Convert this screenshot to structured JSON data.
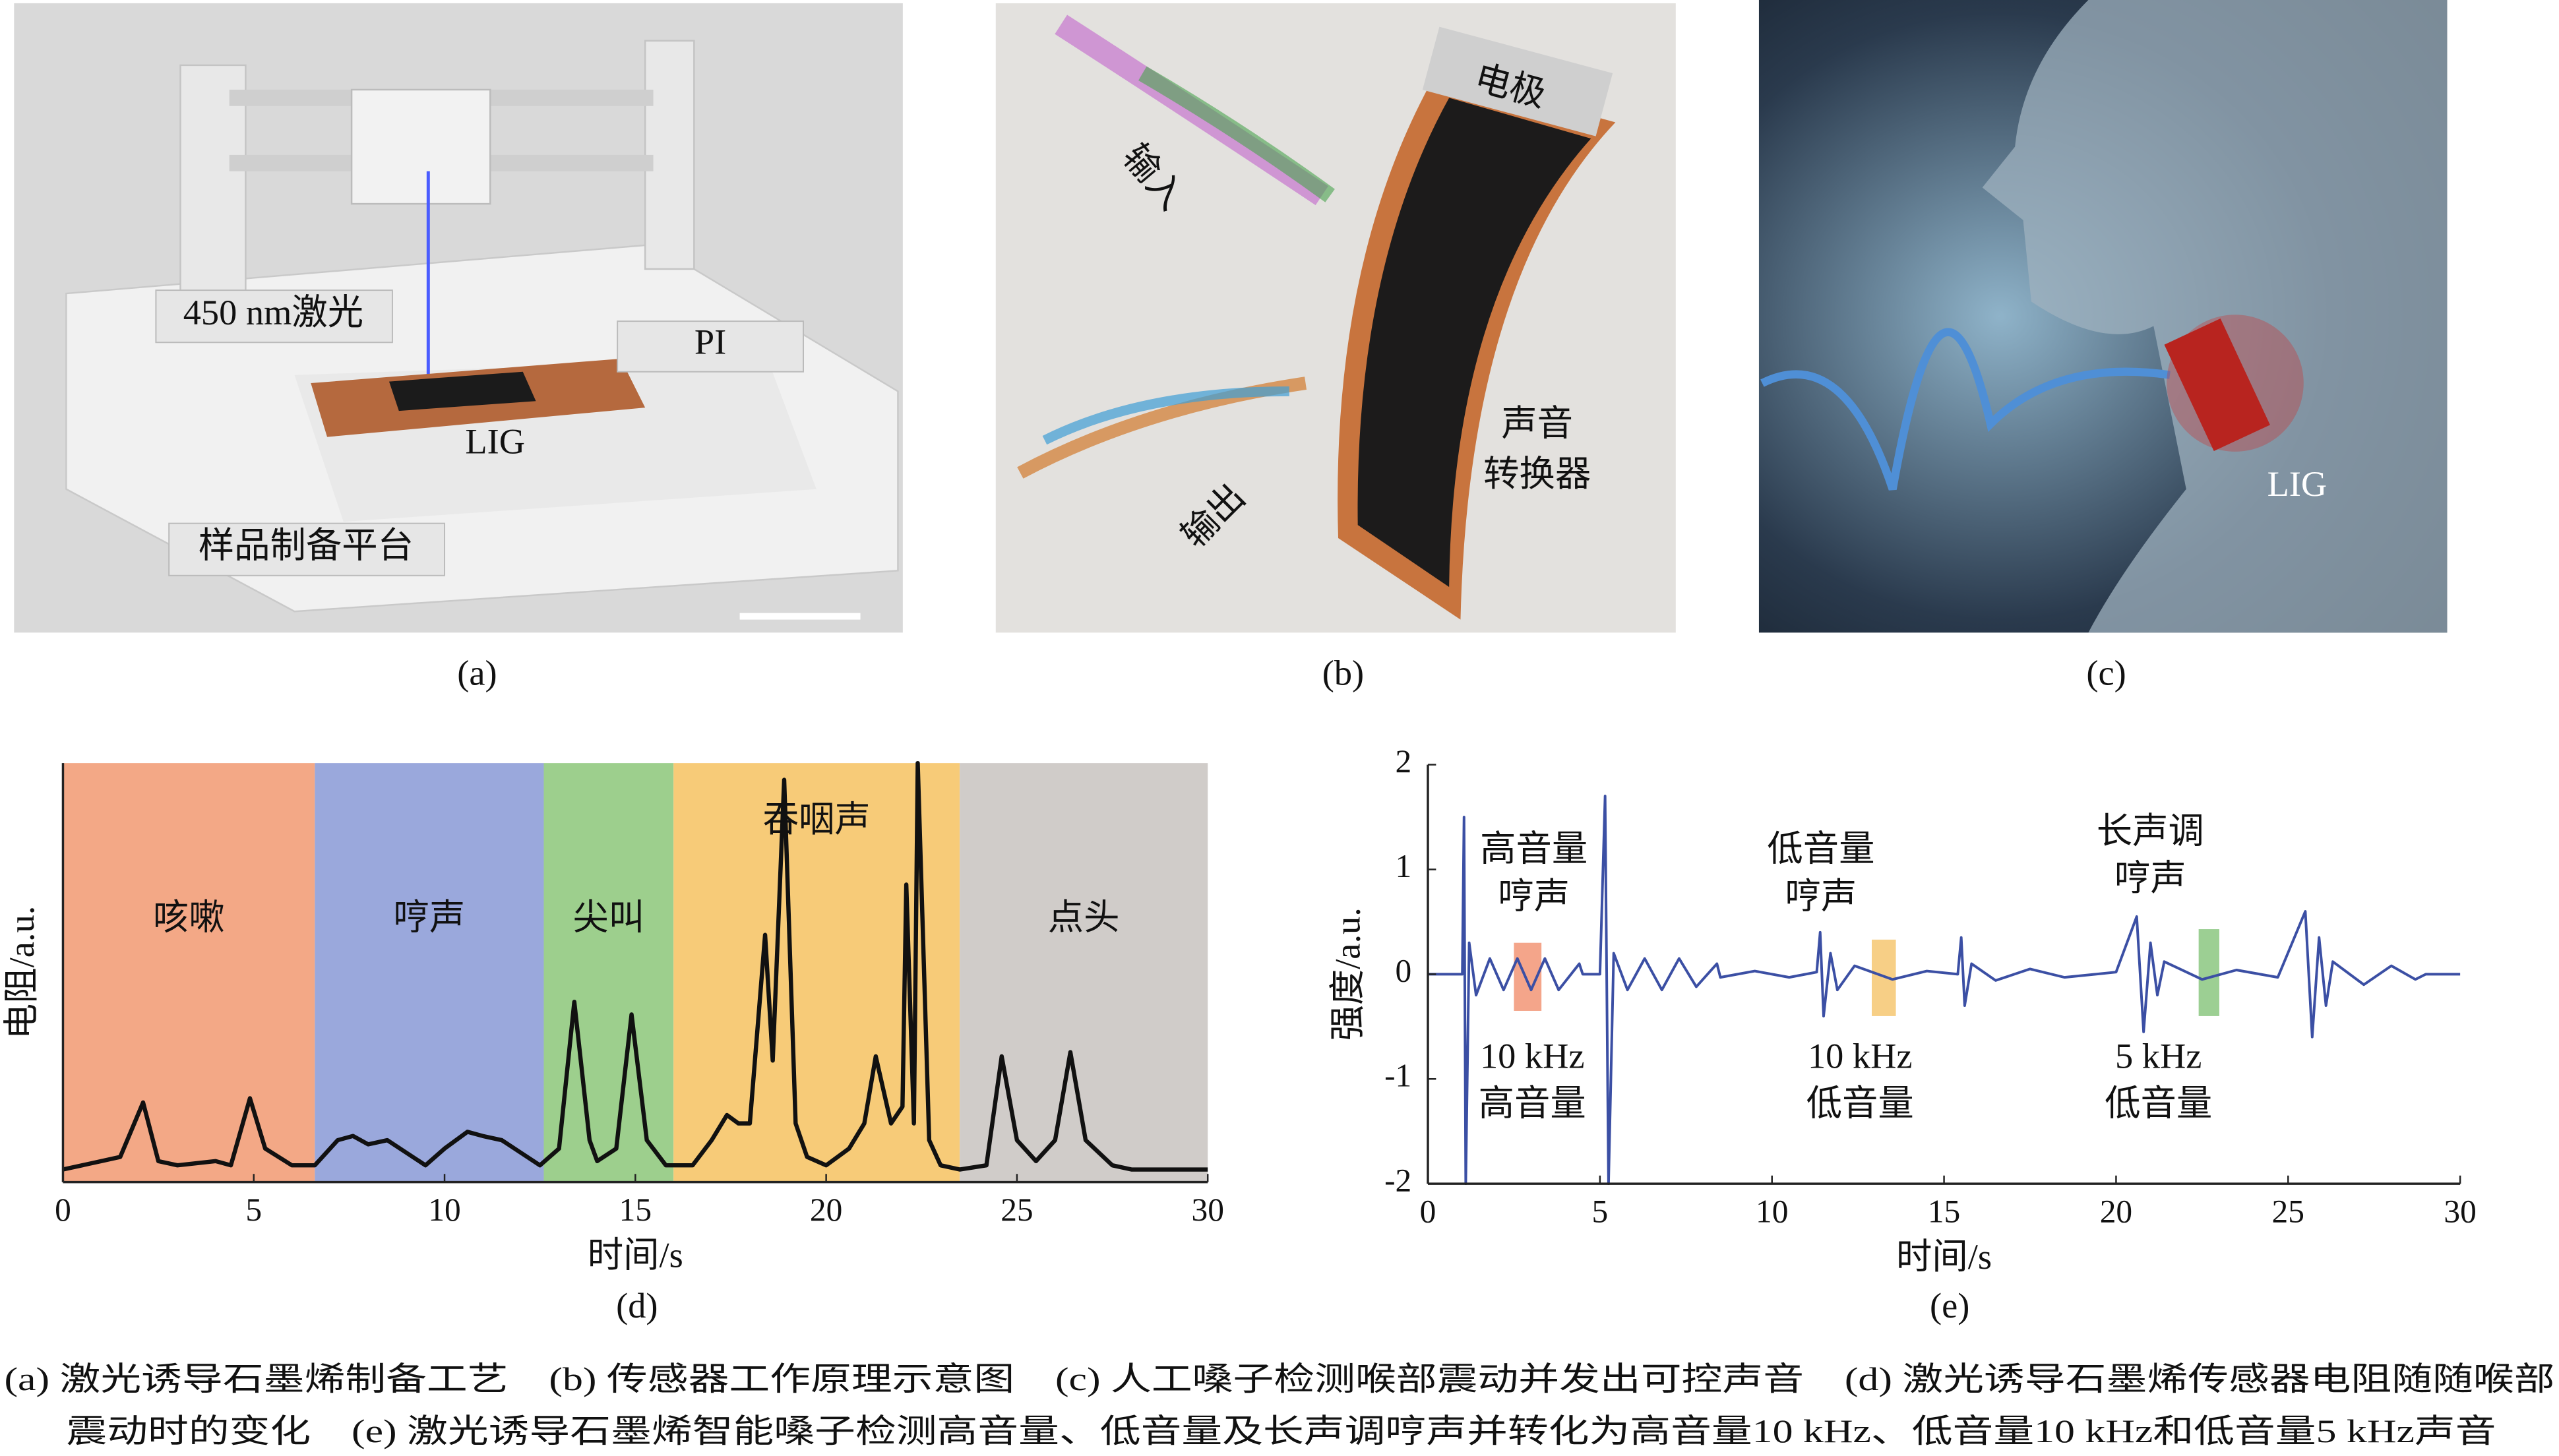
{
  "panels": [
    {
      "label": "(a)",
      "texts": [
        "450 nm激光",
        "PI",
        "LIG",
        "样品制备平台"
      ]
    },
    {
      "label": "(b)",
      "texts": [
        "电极",
        "输入",
        "输出",
        "声音",
        "转换器"
      ]
    },
    {
      "label": "(c)",
      "texts": [
        "LIG"
      ]
    }
  ],
  "chart_data": [
    {
      "type": "line",
      "panel_label": "(d)",
      "xlabel": "时间/s",
      "ylabel": "电阻/a.u.",
      "color": "#111111",
      "xlim": [
        0,
        30
      ],
      "xticks": [
        0,
        5,
        10,
        15,
        20,
        25,
        30
      ],
      "ylim": [
        0,
        1
      ],
      "regions": [
        {
          "label": "咳嗽",
          "start": 0,
          "end": 6.6,
          "color": "#f3a886"
        },
        {
          "label": "哼声",
          "start": 6.6,
          "end": 12.6,
          "color": "#9aa8dc"
        },
        {
          "label": "尖叫",
          "start": 12.6,
          "end": 16,
          "color": "#9dcf8d"
        },
        {
          "label": "吞咽声",
          "start": 16,
          "end": 23.5,
          "color": "#f7cb78"
        },
        {
          "label": "点头",
          "start": 23.5,
          "end": 30,
          "color": "#d0ccc9"
        }
      ],
      "x": [
        0,
        1,
        1.5,
        2.1,
        2.5,
        3,
        4,
        4.4,
        4.9,
        5.3,
        6,
        6.6,
        7.2,
        7.6,
        8,
        8.5,
        9,
        9.5,
        10,
        10.6,
        11,
        11.5,
        12,
        12.5,
        13,
        13.4,
        13.8,
        14,
        14.5,
        14.9,
        15.3,
        15.8,
        16.5,
        17,
        17.4,
        17.7,
        18,
        18.4,
        18.6,
        18.9,
        19.2,
        19.5,
        20,
        20.6,
        21,
        21.3,
        21.7,
        22,
        22.1,
        22.3,
        22.4,
        22.7,
        23,
        23.5,
        24.2,
        24.6,
        25,
        25.5,
        26,
        26.4,
        26.8,
        27.5,
        28,
        30
      ],
      "values": [
        0.03,
        0.05,
        0.06,
        0.19,
        0.05,
        0.04,
        0.05,
        0.04,
        0.2,
        0.08,
        0.04,
        0.04,
        0.1,
        0.11,
        0.09,
        0.1,
        0.07,
        0.04,
        0.08,
        0.12,
        0.11,
        0.1,
        0.07,
        0.04,
        0.08,
        0.43,
        0.1,
        0.05,
        0.08,
        0.4,
        0.1,
        0.04,
        0.04,
        0.1,
        0.16,
        0.14,
        0.14,
        0.59,
        0.29,
        0.96,
        0.14,
        0.06,
        0.04,
        0.08,
        0.14,
        0.3,
        0.14,
        0.18,
        0.71,
        0.14,
        1.0,
        0.1,
        0.04,
        0.03,
        0.04,
        0.3,
        0.1,
        0.05,
        0.1,
        0.31,
        0.1,
        0.04,
        0.03,
        0.03
      ]
    },
    {
      "type": "line",
      "panel_label": "(e)",
      "xlabel": "时间/s",
      "ylabel": "强度/a.u.",
      "color": "#3b4fa4",
      "xlim": [
        0,
        30
      ],
      "xticks": [
        0,
        5,
        10,
        15,
        20,
        25,
        30
      ],
      "ylim": [
        -2,
        2
      ],
      "yticks": [
        -2,
        -1,
        0,
        1,
        2
      ],
      "highlights": [
        {
          "x": [
            2.5,
            3.3
          ],
          "y": [
            -0.35,
            0.3
          ],
          "color": "#f4a58a"
        },
        {
          "x": [
            12.9,
            13.6
          ],
          "y": [
            -0.4,
            0.33
          ],
          "color": "#f7cf86"
        },
        {
          "x": [
            22.4,
            23.0
          ],
          "y": [
            -0.4,
            0.43
          ],
          "color": "#9ccf93"
        }
      ],
      "annotations": [
        [
          "高音量",
          "哼声"
        ],
        [
          "10 kHz",
          "高音量"
        ],
        [
          "低音量",
          "哼声"
        ],
        [
          "10 kHz",
          "低音量"
        ],
        [
          "长声调",
          "哼声"
        ],
        [
          "5 kHz",
          "低音量"
        ]
      ],
      "x": [
        0,
        1.0,
        1.05,
        1.1,
        1.2,
        1.4,
        1.8,
        2.2,
        2.6,
        3.0,
        3.4,
        3.8,
        4.4,
        4.5,
        5.0,
        5.15,
        5.25,
        5.4,
        5.8,
        6.3,
        6.8,
        7.3,
        7.8,
        8.4,
        8.5,
        9.5,
        10.5,
        11.3,
        11.4,
        11.5,
        11.7,
        11.9,
        12.4,
        13.5,
        14.5,
        15.4,
        15.5,
        15.6,
        15.8,
        16.5,
        17.5,
        18.5,
        20.0,
        20.6,
        20.8,
        21.0,
        21.2,
        21.4,
        22.5,
        23.5,
        24.7,
        25.5,
        25.7,
        25.9,
        26.1,
        26.3,
        27.2,
        28.0,
        28.7,
        29,
        30
      ],
      "values": [
        0,
        0,
        1.5,
        -2,
        0.3,
        -0.2,
        0.15,
        -0.15,
        0.15,
        -0.15,
        0.15,
        -0.15,
        0.1,
        0,
        0,
        1.7,
        -2,
        0.2,
        -0.15,
        0.15,
        -0.15,
        0.15,
        -0.12,
        0.1,
        -0.03,
        0.03,
        -0.03,
        0.02,
        0.4,
        -0.4,
        0.2,
        -0.15,
        0.08,
        -0.05,
        0.03,
        0,
        0.35,
        -0.3,
        0.1,
        -0.06,
        0.05,
        -0.03,
        0.02,
        0.55,
        -0.55,
        0.3,
        -0.2,
        0.12,
        -0.05,
        0.04,
        -0.03,
        0.6,
        -0.6,
        0.35,
        -0.3,
        0.12,
        -0.1,
        0.08,
        -0.05,
        0,
        0
      ]
    }
  ],
  "caption": [
    "(a) 激光诱导石墨烯制备工艺　(b) 传感器工作原理示意图　(c) 人工嗓子检测喉部震动并发出可控声音　(d) 激光诱导石墨烯传感器电阻随随喉部",
    "震动时的变化　(e) 激光诱导石墨烯智能嗓子检测高音量、低音量及长声调哼声并转化为高音量10 kHz、低音量10 kHz和低音量5 kHz声音"
  ]
}
